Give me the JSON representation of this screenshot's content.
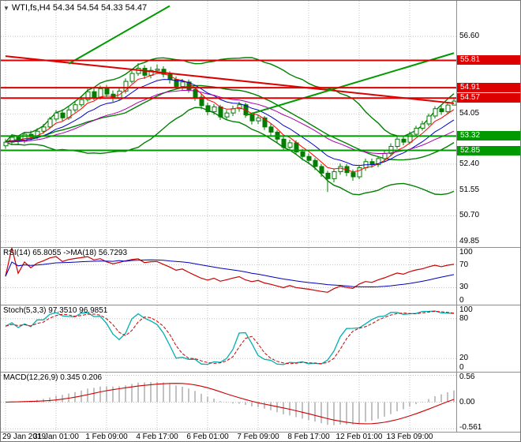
{
  "window": {
    "symbol_marker_icon": "▼",
    "title": "WTI,fs,H4 54.34 54.54 54.33 54.47"
  },
  "colors": {
    "background": "#ffffff",
    "grid": "#c2c2c2",
    "bull_candle": "#ffffff",
    "bear_candle": "#007e00",
    "candle_outline": "#007e00",
    "bollinger": "#008000",
    "rsi_line": "#cc0000",
    "rsi_ma": "#0000bb",
    "stoch_k": "#00b0b0",
    "stoch_d": "#cc0000",
    "macd_hist": "#a8a8a8",
    "macd_signal": "#cc0000"
  },
  "chart_data": {
    "type": "candlestick",
    "symbol": "WTI,fs",
    "timeframe": "H4",
    "ohlc_display": {
      "open": "54.34",
      "high": "54.54",
      "low": "54.33",
      "close": "54.47"
    },
    "x_labels": [
      {
        "i": 0,
        "t": "29 Jan 2019"
      },
      {
        "i": 8,
        "t": "31 Jan 01:00"
      },
      {
        "i": 16,
        "t": "1 Feb 09:00"
      },
      {
        "i": 24,
        "t": "4 Feb 17:00"
      },
      {
        "i": 32,
        "t": "6 Feb 01:00"
      },
      {
        "i": 40,
        "t": "7 Feb 09:00"
      },
      {
        "i": 48,
        "t": "8 Feb 17:00"
      },
      {
        "i": 56,
        "t": "12 Feb 01:00"
      },
      {
        "i": 64,
        "t": "13 Feb 09:00"
      }
    ],
    "candles": [
      [
        53.0,
        53.22,
        52.9,
        53.12
      ],
      [
        53.12,
        53.38,
        53.05,
        53.28
      ],
      [
        53.28,
        53.35,
        53.02,
        53.15
      ],
      [
        53.15,
        53.46,
        53.08,
        53.38
      ],
      [
        53.38,
        53.5,
        53.18,
        53.3
      ],
      [
        53.3,
        53.58,
        53.22,
        53.48
      ],
      [
        53.48,
        53.72,
        53.4,
        53.62
      ],
      [
        53.62,
        53.95,
        53.55,
        53.88
      ],
      [
        53.88,
        54.18,
        53.8,
        54.08
      ],
      [
        54.08,
        54.2,
        53.82,
        53.92
      ],
      [
        53.92,
        54.28,
        53.85,
        54.18
      ],
      [
        54.18,
        54.45,
        54.1,
        54.35
      ],
      [
        54.35,
        54.62,
        54.28,
        54.52
      ],
      [
        54.52,
        54.88,
        54.45,
        54.78
      ],
      [
        54.78,
        54.9,
        54.5,
        54.6
      ],
      [
        54.6,
        54.98,
        54.52,
        54.88
      ],
      [
        54.88,
        55.0,
        54.6,
        54.7
      ],
      [
        54.7,
        54.82,
        54.45,
        54.58
      ],
      [
        54.58,
        54.92,
        54.5,
        54.8
      ],
      [
        54.8,
        55.22,
        54.72,
        55.12
      ],
      [
        55.12,
        55.5,
        55.05,
        55.38
      ],
      [
        55.38,
        55.72,
        55.3,
        55.55
      ],
      [
        55.55,
        55.65,
        55.2,
        55.32
      ],
      [
        55.32,
        55.6,
        55.22,
        55.48
      ],
      [
        55.48,
        55.68,
        55.38,
        55.52
      ],
      [
        55.52,
        55.62,
        55.25,
        55.35
      ],
      [
        55.35,
        55.45,
        55.05,
        55.18
      ],
      [
        55.18,
        55.28,
        54.85,
        54.95
      ],
      [
        54.95,
        55.2,
        54.82,
        55.1
      ],
      [
        55.1,
        55.18,
        54.75,
        54.85
      ],
      [
        54.85,
        54.95,
        54.48,
        54.6
      ],
      [
        54.6,
        54.7,
        54.2,
        54.32
      ],
      [
        54.32,
        54.42,
        54.0,
        54.12
      ],
      [
        54.12,
        54.38,
        54.02,
        54.28
      ],
      [
        54.28,
        54.35,
        53.85,
        53.95
      ],
      [
        53.95,
        54.18,
        53.85,
        54.08
      ],
      [
        54.08,
        54.32,
        53.98,
        54.22
      ],
      [
        54.22,
        54.45,
        54.12,
        54.35
      ],
      [
        54.35,
        54.42,
        53.92,
        54.02
      ],
      [
        54.02,
        54.1,
        53.7,
        53.82
      ],
      [
        53.82,
        54.02,
        53.72,
        53.92
      ],
      [
        53.92,
        53.98,
        53.52,
        53.62
      ],
      [
        53.62,
        53.72,
        53.32,
        53.45
      ],
      [
        53.45,
        53.52,
        53.1,
        53.22
      ],
      [
        53.22,
        53.3,
        52.85,
        52.95
      ],
      [
        52.95,
        53.2,
        52.85,
        53.1
      ],
      [
        53.1,
        53.18,
        52.7,
        52.8
      ],
      [
        52.8,
        52.9,
        52.52,
        52.65
      ],
      [
        52.65,
        52.75,
        52.4,
        52.52
      ],
      [
        52.52,
        52.6,
        52.2,
        52.32
      ],
      [
        52.32,
        52.4,
        51.98,
        52.1
      ],
      [
        52.1,
        52.18,
        51.48,
        51.92
      ],
      [
        51.92,
        52.25,
        51.8,
        52.15
      ],
      [
        52.15,
        52.42,
        52.05,
        52.32
      ],
      [
        52.32,
        52.4,
        52.0,
        52.12
      ],
      [
        52.12,
        52.22,
        51.85,
        51.98
      ],
      [
        51.98,
        52.35,
        51.9,
        52.28
      ],
      [
        52.28,
        52.58,
        52.18,
        52.48
      ],
      [
        52.48,
        52.58,
        52.28,
        52.38
      ],
      [
        52.38,
        52.66,
        52.3,
        52.58
      ],
      [
        52.58,
        52.85,
        52.48,
        52.75
      ],
      [
        52.75,
        53.08,
        52.68,
        52.98
      ],
      [
        52.98,
        53.32,
        52.9,
        53.22
      ],
      [
        53.22,
        53.32,
        53.02,
        53.12
      ],
      [
        53.12,
        53.46,
        53.05,
        53.38
      ],
      [
        53.38,
        53.66,
        53.3,
        53.58
      ],
      [
        53.58,
        53.82,
        53.5,
        53.72
      ],
      [
        53.72,
        54.06,
        53.65,
        53.98
      ],
      [
        53.98,
        54.3,
        53.9,
        54.22
      ],
      [
        54.22,
        54.32,
        54.02,
        54.12
      ],
      [
        54.12,
        54.42,
        54.05,
        54.34
      ],
      [
        54.34,
        54.54,
        54.33,
        54.47
      ]
    ],
    "main": {
      "value_top": 57.77,
      "value_bottom": 49.67,
      "grid_labels": [
        {
          "v": 56.6,
          "t": "56.60"
        },
        {
          "v": 54.05,
          "t": "54.05"
        },
        {
          "v": 52.4,
          "t": "52.40"
        },
        {
          "v": 51.55,
          "t": "51.55"
        },
        {
          "v": 50.7,
          "t": "50.70"
        },
        {
          "v": 49.85,
          "t": "49.85"
        }
      ],
      "levels": [
        {
          "value": 55.81,
          "label": "55.81",
          "color": "#dd0000"
        },
        {
          "value": 54.91,
          "label": "54.91",
          "color": "#dd0000"
        },
        {
          "value": 54.57,
          "label": "54.57",
          "color": "#dd0000"
        },
        {
          "value": 53.32,
          "label": "53.32",
          "color": "#009900"
        },
        {
          "value": 52.85,
          "label": "52.85",
          "color": "#009900"
        }
      ],
      "trendlines": [
        {
          "i1": 0,
          "v1": 55.95,
          "i2": 71,
          "v2": 54.4,
          "color": "#dd0000"
        },
        {
          "i1": 10,
          "v1": 55.7,
          "i2": 26,
          "v2": 57.6,
          "color": "#009900"
        },
        {
          "i1": 38,
          "v1": 54.0,
          "i2": 71,
          "v2": 56.05,
          "color": "#009900"
        }
      ],
      "bollinger": {
        "period": 20,
        "deviation": 2
      },
      "moving_averages": [
        {
          "period": 5,
          "color": "#ff0000"
        },
        {
          "period": 10,
          "color": "#0000cc"
        },
        {
          "period": 21,
          "color": "#aa00aa"
        }
      ]
    },
    "indicator_panels": [
      {
        "id": "rsi",
        "label": "RSI(14) 65.8055  ->MA(18) 56.7293",
        "range": [
          0,
          100
        ],
        "ticks": [
          {
            "v": 100,
            "t": "100"
          },
          {
            "v": 70,
            "t": "70"
          },
          {
            "v": 30,
            "t": "30"
          },
          {
            "v": 0,
            "t": "0"
          }
        ],
        "dotted_levels": [
          70,
          30
        ]
      },
      {
        "id": "stoch",
        "label": "Stoch(5,3,3) 97.3510 96.9851",
        "range": [
          0,
          100
        ],
        "ticks": [
          {
            "v": 100,
            "t": "100"
          },
          {
            "v": 80,
            "t": "80"
          },
          {
            "v": 20,
            "t": "20"
          },
          {
            "v": 0,
            "t": "0"
          }
        ],
        "dotted_levels": [
          80,
          20
        ]
      },
      {
        "id": "macd",
        "label": "MACD(12,26,9) 0.345 0.206",
        "range": [
          -0.62,
          0.62
        ],
        "ticks": [
          {
            "v": 0.56,
            "t": "0.56"
          },
          {
            "v": 0,
            "t": "0.00"
          },
          {
            "v": -0.561,
            "t": "-0.561"
          }
        ],
        "dotted_levels": [
          0.56,
          0,
          -0.561
        ]
      }
    ]
  }
}
